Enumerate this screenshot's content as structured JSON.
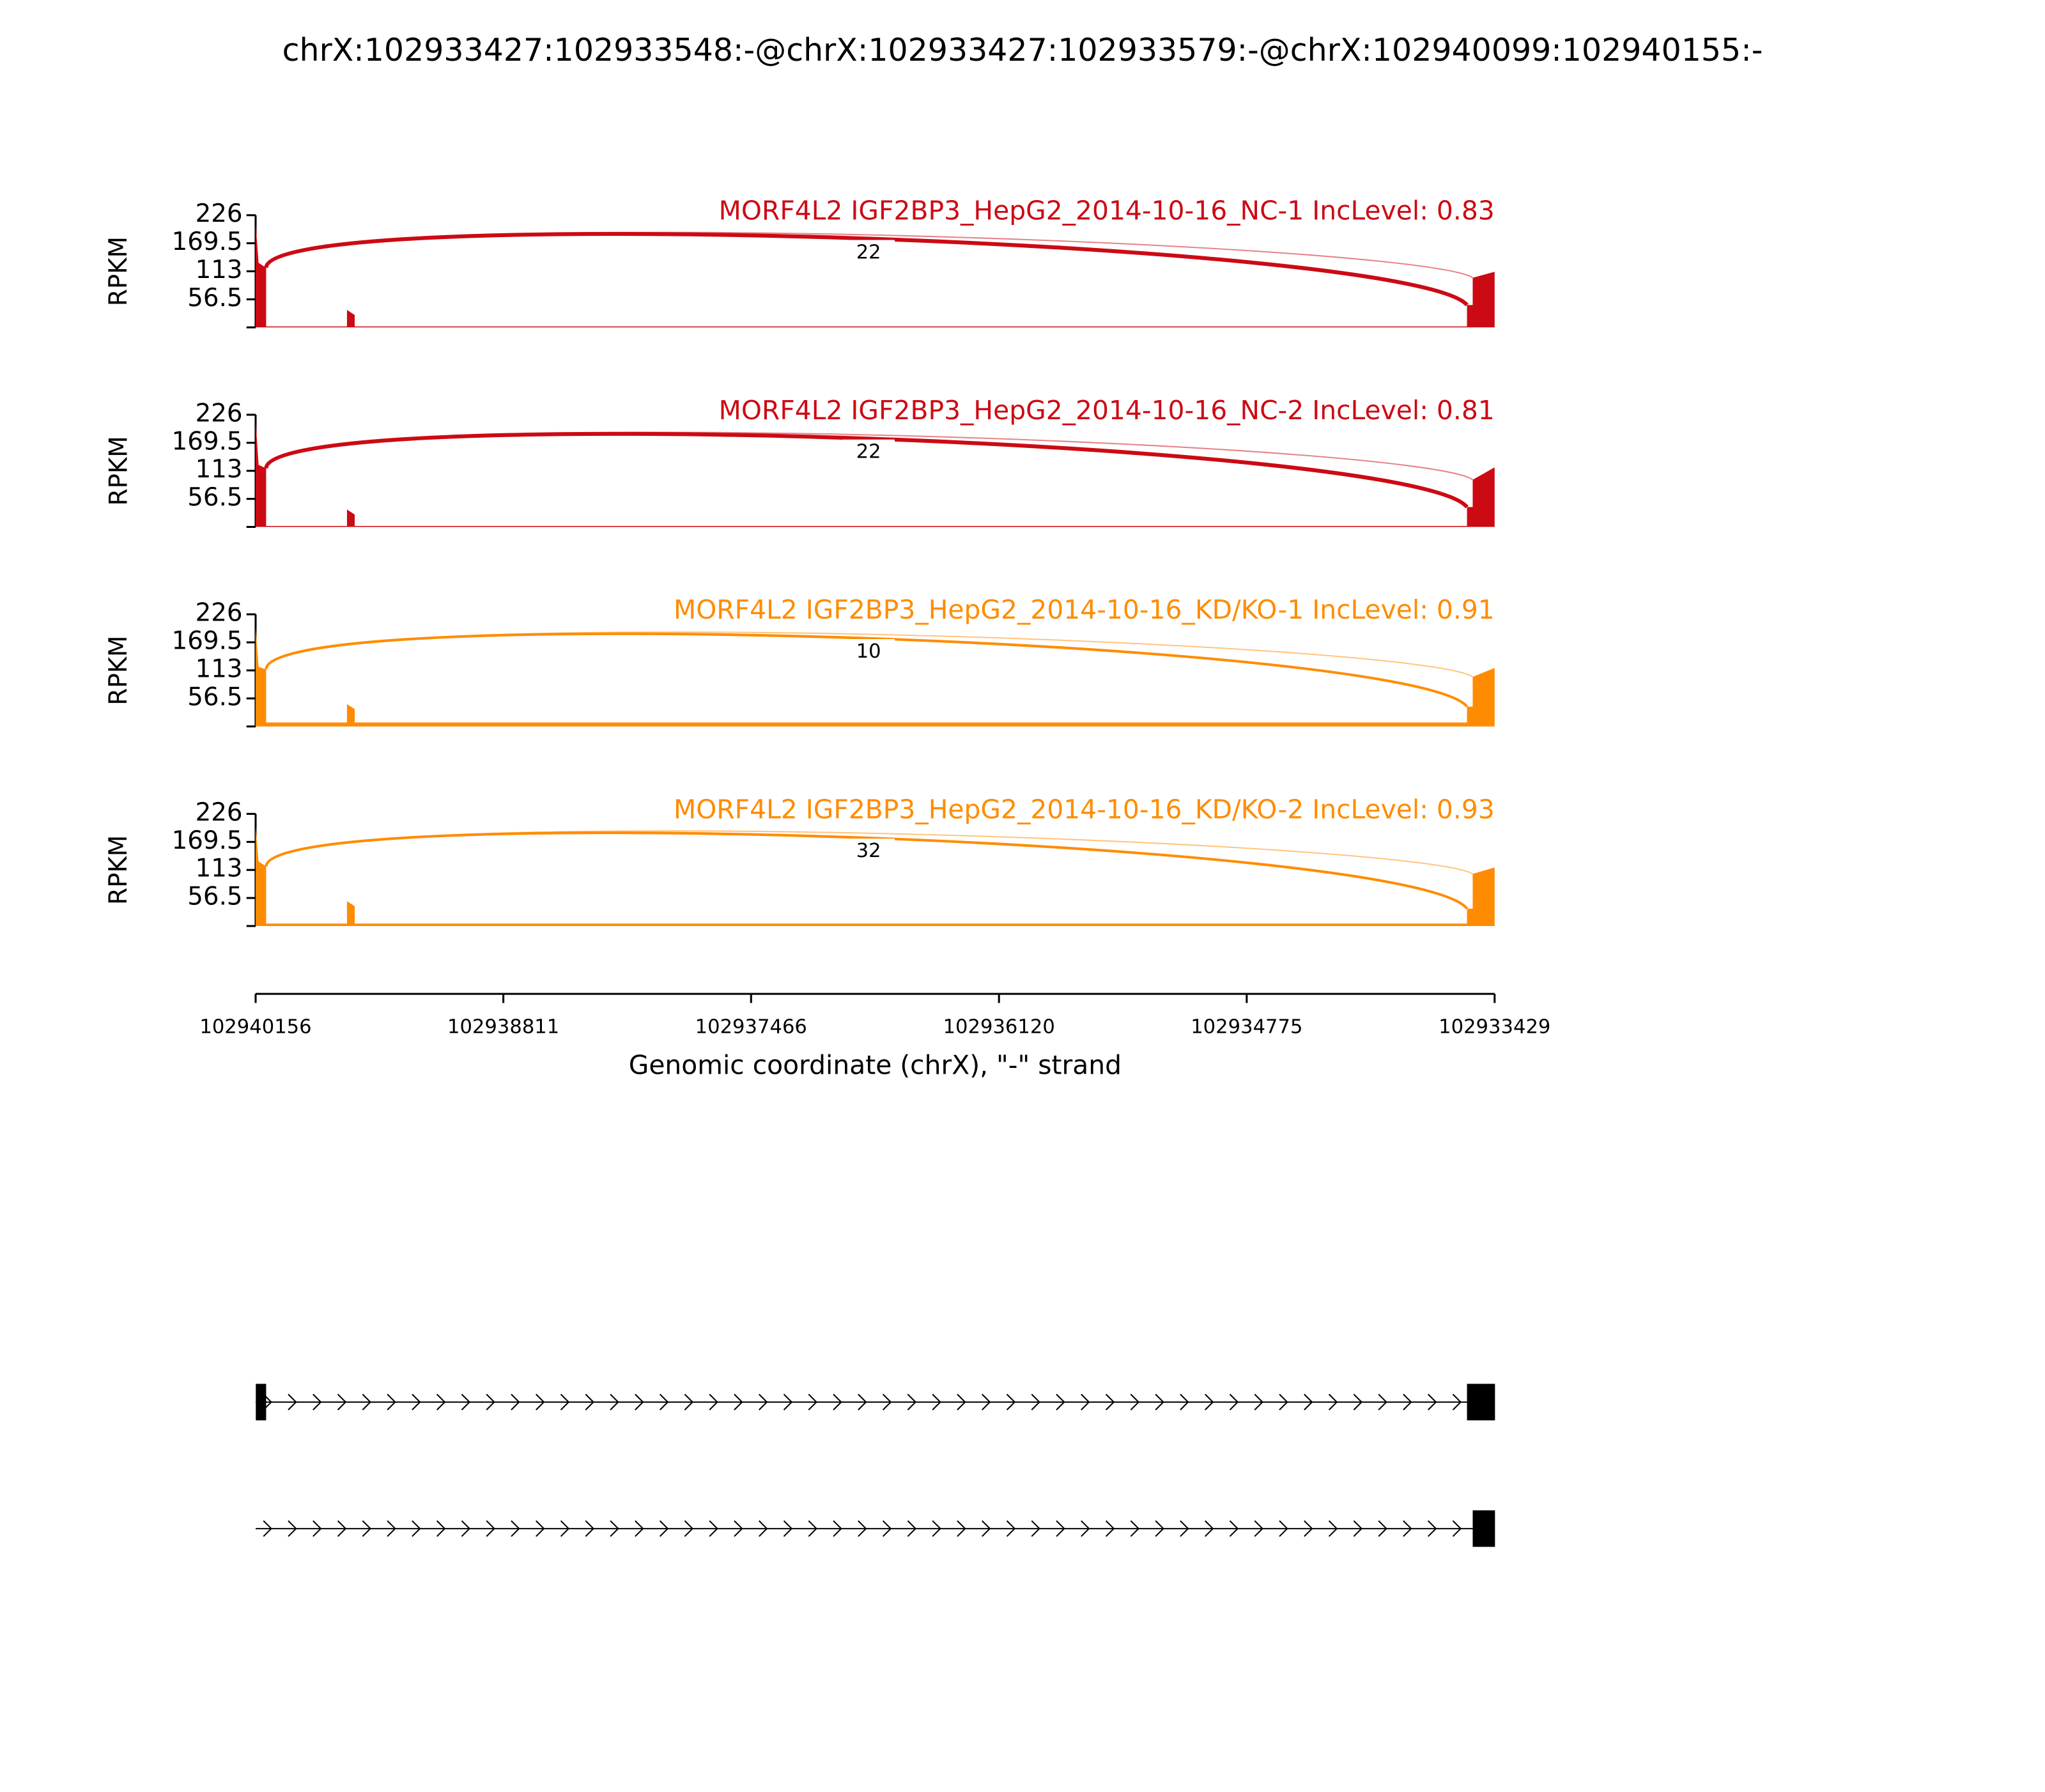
{
  "chart_data": {
    "type": "sashimi",
    "title": "chrX:102933427:102933548:-@chrX:102933427:102933579:-@chrX:102940099:102940155:-",
    "x_label": "Genomic coordinate (chrX), \"-\" strand",
    "y_label": "RPKM",
    "xlim": [
      102940156,
      102933429
    ],
    "xticks": [
      102940156,
      102938811,
      102937466,
      102936120,
      102934775,
      102933429
    ],
    "ylim": [
      0,
      226
    ],
    "yticks": [
      56.5,
      113,
      169.5,
      226
    ],
    "coverage_x": [
      102940156,
      102940156,
      102940140,
      102940099,
      102940099,
      102939660,
      102939660,
      102939618,
      102939618,
      102933579,
      102933579,
      102933548,
      102933548,
      102933429,
      102933429
    ],
    "tracks": [
      {
        "name": "MORF4L2 IGF2BP3_HepG2_2014-10-16_NC-1 IncLevel: 0.83",
        "color": "#cc0a14",
        "junction": 22,
        "values": [
          0,
          210,
          130,
          120,
          2,
          2,
          35,
          25,
          2,
          2,
          45,
          45,
          100,
          112,
          0
        ]
      },
      {
        "name": "MORF4L2 IGF2BP3_HepG2_2014-10-16_NC-2 IncLevel: 0.81",
        "color": "#cc0a14",
        "junction": 22,
        "values": [
          0,
          215,
          125,
          118,
          2,
          2,
          35,
          25,
          2,
          2,
          40,
          40,
          95,
          120,
          0
        ]
      },
      {
        "name": "MORF4L2 IGF2BP3_HepG2_2014-10-16_KD/KO-1 IncLevel: 0.91",
        "color": "#ff8c00",
        "junction": 10,
        "values": [
          0,
          200,
          120,
          115,
          8,
          8,
          45,
          35,
          8,
          8,
          40,
          40,
          100,
          118,
          0
        ]
      },
      {
        "name": "MORF4L2 IGF2BP3_HepG2_2014-10-16_KD/KO-2 IncLevel: 0.93",
        "color": "#ff8c00",
        "junction": 32,
        "values": [
          0,
          200,
          130,
          120,
          5,
          5,
          50,
          40,
          5,
          5,
          35,
          35,
          105,
          118,
          0
        ]
      }
    ],
    "isoforms": [
      {
        "exons": [
          [
            102940155,
            102940099
          ],
          [
            102933579,
            102933427
          ]
        ]
      },
      {
        "exons": [
          [
            102933548,
            102933427
          ]
        ]
      }
    ]
  }
}
